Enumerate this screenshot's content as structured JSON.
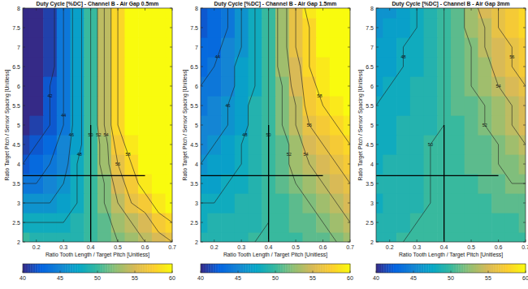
{
  "chart_data": [
    {
      "type": "heatmap",
      "title": "Duty Cycle [%DC] - Channel B - Air Gap 0.5mm",
      "x_label": "Ratio Tooth Length / Target Pitch [Unitless]",
      "y_label": "Ratio Target Pitch / Sensor Spacing [Unitless]",
      "x": [
        0.15,
        0.2,
        0.25,
        0.3,
        0.35,
        0.4,
        0.45,
        0.5,
        0.55,
        0.6,
        0.65,
        0.7
      ],
      "y": [
        2,
        2.5,
        3,
        3.5,
        4,
        4.5,
        5,
        5.5,
        6,
        6.5,
        7,
        7.5,
        8
      ],
      "cells": [
        [
          50,
          49,
          49,
          49,
          49,
          50,
          51,
          52,
          53,
          54,
          55,
          56
        ],
        [
          48,
          48,
          48,
          48,
          49,
          50,
          51,
          53,
          54,
          55,
          57,
          58
        ],
        [
          46,
          46,
          46,
          47,
          48,
          50,
          52,
          54,
          56,
          57,
          59,
          60
        ],
        [
          44,
          44,
          45,
          46,
          48,
          50,
          52,
          55,
          57,
          59,
          60,
          60
        ],
        [
          42,
          43,
          44,
          45,
          48,
          50,
          53,
          56,
          58,
          60,
          60,
          60
        ],
        [
          41,
          42,
          43,
          45,
          47,
          50,
          53,
          57,
          59,
          60,
          60,
          60
        ],
        [
          40,
          41,
          42,
          44,
          47,
          50,
          54,
          58,
          60,
          60,
          60,
          60
        ],
        [
          40,
          40,
          42,
          44,
          47,
          50,
          54,
          58,
          60,
          60,
          60,
          60
        ],
        [
          40,
          40,
          42,
          44,
          47,
          50,
          54,
          58,
          60,
          60,
          60,
          60
        ],
        [
          40,
          40,
          41,
          44,
          47,
          50,
          54,
          58,
          60,
          60,
          60,
          60
        ],
        [
          40,
          40,
          41,
          44,
          47,
          50,
          54,
          58,
          60,
          60,
          60,
          60
        ],
        [
          40,
          40,
          41,
          44,
          47,
          50,
          54,
          58,
          60,
          60,
          60,
          60
        ],
        [
          40,
          40,
          41,
          44,
          47,
          50,
          54,
          58,
          60,
          60,
          60,
          60
        ]
      ],
      "contour_levels": [
        42,
        44,
        46,
        48,
        50,
        52,
        54,
        56,
        58
      ],
      "xlim": [
        0.15,
        0.7
      ],
      "ylim": [
        2,
        8
      ],
      "xticks": [
        0.2,
        0.3,
        0.4,
        0.5,
        0.6,
        0.7
      ],
      "yticks": [
        2,
        2.5,
        3,
        3.5,
        4,
        4.5,
        5,
        5.5,
        6,
        6.5,
        7,
        7.5,
        8
      ],
      "colorbar_range": [
        40,
        60
      ],
      "colorbar_ticks": [
        40,
        45,
        50,
        55,
        60
      ],
      "crosshair": {
        "x": 0.4,
        "y": 3.7,
        "x_span": [
          0.15,
          0.6
        ],
        "y_span": [
          2,
          5
        ]
      }
    },
    {
      "type": "heatmap",
      "title": "Duty Cycle [%DC] - Channel B - Air Gap 1.5mm",
      "x_label": "Ratio Tooth Length / Target Pitch [Unitless]",
      "y_label": "Ratio Target Pitch / Sensor Spacing [Unitless]",
      "x": [
        0.15,
        0.2,
        0.25,
        0.3,
        0.35,
        0.4,
        0.45,
        0.5,
        0.55,
        0.6,
        0.65,
        0.7
      ],
      "y": [
        2,
        2.5,
        3,
        3.5,
        4,
        4.5,
        5,
        5.5,
        6,
        6.5,
        7,
        7.5,
        8
      ],
      "cells": [
        [
          49,
          49,
          49,
          49,
          50,
          50,
          50,
          50,
          51,
          51,
          52,
          53
        ],
        [
          48,
          49,
          49,
          49,
          49,
          50,
          50,
          51,
          51,
          52,
          53,
          54
        ],
        [
          48,
          48,
          48,
          49,
          49,
          50,
          50,
          51,
          52,
          53,
          54,
          55
        ],
        [
          47,
          47,
          48,
          48,
          49,
          50,
          51,
          52,
          53,
          54,
          55,
          56
        ],
        [
          46,
          47,
          47,
          48,
          49,
          50,
          51,
          53,
          54,
          55,
          56,
          57
        ],
        [
          45,
          46,
          47,
          48,
          49,
          50,
          51,
          53,
          55,
          56,
          57,
          58
        ],
        [
          45,
          45,
          46,
          47,
          49,
          50,
          52,
          54,
          56,
          57,
          58,
          59
        ],
        [
          44,
          45,
          46,
          47,
          49,
          50,
          52,
          54,
          57,
          58,
          59,
          60
        ],
        [
          44,
          44,
          45,
          47,
          48,
          50,
          52,
          55,
          57,
          59,
          60,
          60
        ],
        [
          43,
          44,
          45,
          47,
          48,
          50,
          53,
          55,
          58,
          59,
          60,
          60
        ],
        [
          43,
          43,
          45,
          46,
          48,
          50,
          53,
          56,
          58,
          60,
          60,
          60
        ],
        [
          42,
          43,
          44,
          46,
          48,
          50,
          53,
          56,
          58,
          60,
          60,
          60
        ],
        [
          42,
          43,
          44,
          46,
          48,
          50,
          53,
          56,
          59,
          60,
          60,
          60
        ]
      ],
      "contour_levels": [
        44,
        46,
        48,
        50,
        52,
        54,
        56,
        58
      ],
      "xlim": [
        0.15,
        0.7
      ],
      "ylim": [
        2,
        8
      ],
      "xticks": [
        0.2,
        0.3,
        0.4,
        0.5,
        0.6,
        0.7
      ],
      "yticks": [
        2,
        2.5,
        3,
        3.5,
        4,
        4.5,
        5,
        5.5,
        6,
        6.5,
        7,
        7.5,
        8
      ],
      "colorbar_range": [
        40,
        60
      ],
      "colorbar_ticks": [
        40,
        45,
        50,
        55,
        60
      ],
      "crosshair": {
        "x": 0.4,
        "y": 3.7,
        "x_span": [
          0.15,
          0.6
        ],
        "y_span": [
          2,
          5
        ]
      }
    },
    {
      "type": "heatmap",
      "title": "Duty Cycle [%DC] - Channel B - Air Gap 3mm",
      "x_label": "Ratio Tooth Length / Target Pitch [Unitless]",
      "y_label": "Ratio Target Pitch / Sensor Spacing [Unitless]",
      "x": [
        0.15,
        0.2,
        0.25,
        0.3,
        0.35,
        0.4,
        0.45,
        0.5,
        0.55,
        0.6,
        0.65,
        0.7
      ],
      "y": [
        2,
        2.5,
        3,
        3.5,
        4,
        4.5,
        5,
        5.5,
        6,
        6.5,
        7,
        7.5,
        8
      ],
      "cells": [
        [
          49,
          49,
          50,
          50,
          50,
          50,
          50,
          50,
          50,
          50,
          50,
          50
        ],
        [
          49,
          49,
          49,
          50,
          50,
          50,
          50,
          50,
          50,
          50,
          50,
          51
        ],
        [
          48,
          49,
          49,
          49,
          50,
          50,
          50,
          50,
          50,
          51,
          51,
          51
        ],
        [
          49,
          49,
          49,
          49,
          50,
          50,
          50,
          50,
          51,
          51,
          52,
          52
        ],
        [
          48,
          49,
          49,
          49,
          50,
          50,
          50,
          51,
          51,
          52,
          52,
          53
        ],
        [
          48,
          48,
          49,
          49,
          50,
          50,
          50,
          51,
          51,
          52,
          53,
          54
        ],
        [
          48,
          48,
          49,
          49,
          49,
          50,
          50,
          51,
          52,
          53,
          54,
          55
        ],
        [
          48,
          48,
          48,
          49,
          49,
          50,
          51,
          51,
          52,
          53,
          54,
          55
        ],
        [
          47,
          48,
          48,
          49,
          49,
          50,
          51,
          52,
          53,
          54,
          55,
          56
        ],
        [
          47,
          47,
          48,
          48,
          49,
          50,
          51,
          52,
          53,
          55,
          56,
          57
        ],
        [
          47,
          47,
          48,
          48,
          49,
          50,
          51,
          52,
          54,
          55,
          56,
          57
        ],
        [
          46,
          47,
          47,
          48,
          49,
          50,
          51,
          53,
          54,
          56,
          57,
          58
        ],
        [
          46,
          46,
          47,
          48,
          49,
          50,
          51,
          53,
          55,
          56,
          57,
          58
        ]
      ],
      "contour_levels": [
        48,
        50,
        52,
        54,
        56
      ],
      "xlim": [
        0.15,
        0.7
      ],
      "ylim": [
        2,
        8
      ],
      "xticks": [
        0.2,
        0.3,
        0.4,
        0.5,
        0.6,
        0.7
      ],
      "yticks": [
        2,
        2.5,
        3,
        3.5,
        4,
        4.5,
        5,
        5.5,
        6,
        6.5,
        7,
        7.5,
        8
      ],
      "colorbar_range": [
        40,
        60
      ],
      "colorbar_ticks": [
        40,
        45,
        50,
        55,
        60
      ],
      "crosshair": {
        "x": 0.4,
        "y": 3.7,
        "x_span": [
          0.15,
          0.6
        ],
        "y_span": [
          2,
          5
        ]
      }
    }
  ]
}
